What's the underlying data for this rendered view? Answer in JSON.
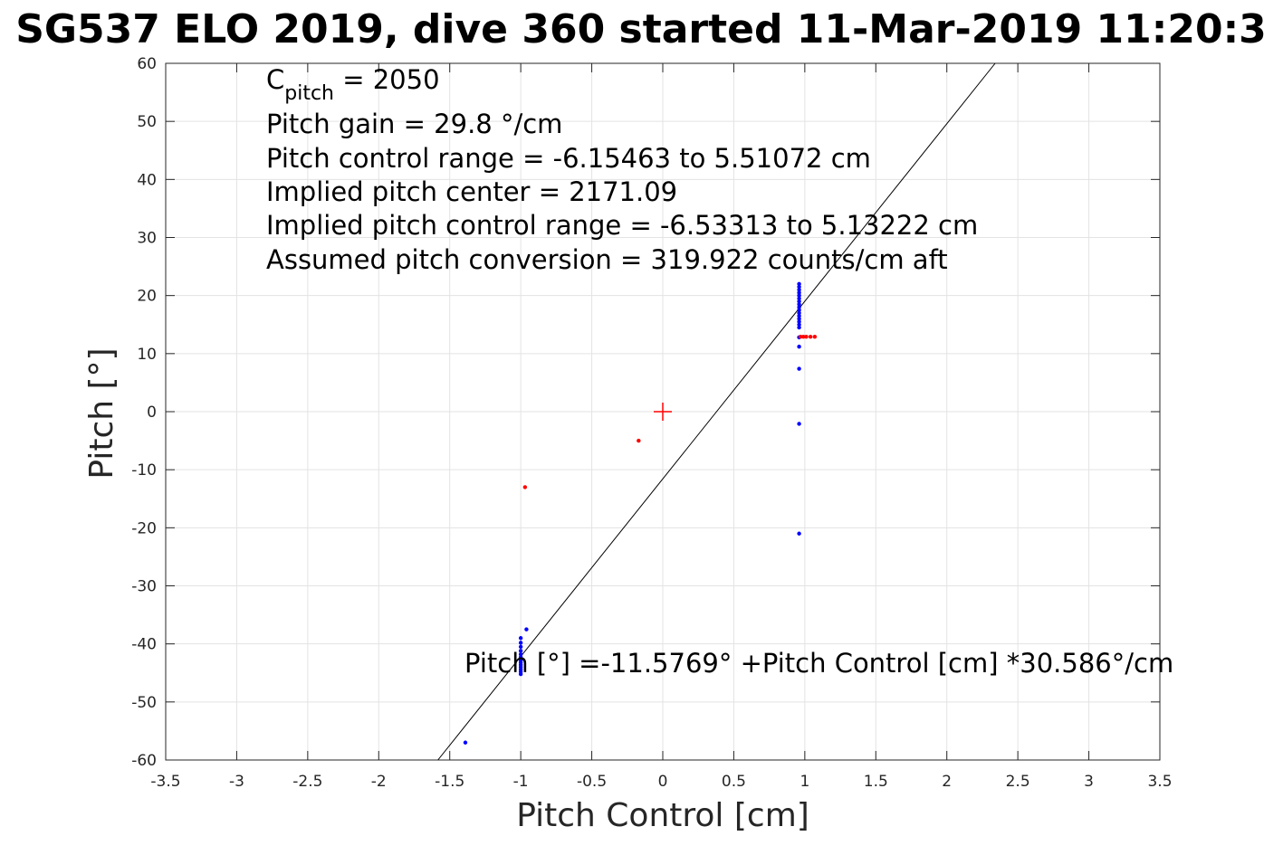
{
  "chart_data": {
    "type": "scatter",
    "title": "SG537 ELO 2019, dive 360 started 11-Mar-2019 11:20:3",
    "xlabel": "Pitch Control [cm]",
    "ylabel": "Pitch [°]",
    "xlim": [
      -3.5,
      3.5
    ],
    "ylim": [
      -60,
      60
    ],
    "grid": true,
    "xticks": [
      -3.5,
      -3,
      -2.5,
      -2,
      -1.5,
      -1,
      -0.5,
      0,
      0.5,
      1,
      1.5,
      2,
      2.5,
      3,
      3.5
    ],
    "xtick_labels": [
      "-3.5",
      "-3",
      "-2.5",
      "-2",
      "-1.5",
      "-1",
      "-0.5",
      "0",
      "0.5",
      "1",
      "1.5",
      "2",
      "2.5",
      "3",
      "3.5"
    ],
    "yticks": [
      60,
      50,
      40,
      30,
      20,
      10,
      0,
      -10,
      -20,
      -30,
      -40,
      -50,
      -60
    ],
    "ytick_labels": [
      "60",
      "50",
      "40",
      "30",
      "20",
      "10",
      "0",
      "-10",
      "-20",
      "-30",
      "-40",
      "-50",
      "-60"
    ],
    "annotations": {
      "c_pitch_main": "C",
      "c_pitch_sub": "pitch",
      "c_pitch_value": " = 2050",
      "pitch_gain": "Pitch gain = 29.8 °/cm",
      "control_range": "Pitch control range = -6.15463 to 5.51072 cm",
      "implied_center": "Implied pitch center = 2171.09",
      "implied_range": "Implied pitch control range = -6.53313 to 5.13222 cm",
      "conversion": "Assumed pitch conversion = 319.922 counts/cm aft",
      "fit_equation": "Pitch [°] =-11.5769° +Pitch Control [cm] *30.586°/cm"
    },
    "fit_line": {
      "intercept": -11.5769,
      "slope": 30.586,
      "color": "#000000"
    },
    "center_marker": {
      "x": 0,
      "y": 0,
      "color": "#ff0000"
    },
    "series": [
      {
        "color": "#0000ff",
        "points": [
          [
            -1.39,
            -57
          ],
          [
            -0.96,
            -37.5
          ],
          [
            -1.0,
            -39
          ],
          [
            -1.0,
            -39.8
          ],
          [
            -1.0,
            -40.5
          ],
          [
            -1.0,
            -41.2
          ],
          [
            -1.0,
            -41.8
          ],
          [
            -1.0,
            -42.3
          ],
          [
            -1.0,
            -42.8
          ],
          [
            -1.0,
            -43.2
          ],
          [
            -1.0,
            -43.6
          ],
          [
            -1.0,
            -44.0
          ],
          [
            -1.0,
            -44.4
          ],
          [
            -1.0,
            -44.8
          ],
          [
            -1.0,
            -45.2
          ],
          [
            0.96,
            22
          ],
          [
            0.96,
            21.5
          ],
          [
            0.96,
            21
          ],
          [
            0.96,
            20.5
          ],
          [
            0.96,
            20
          ],
          [
            0.96,
            19.5
          ],
          [
            0.96,
            19
          ],
          [
            0.96,
            18.5
          ],
          [
            0.96,
            18
          ],
          [
            0.96,
            17.5
          ],
          [
            0.96,
            17
          ],
          [
            0.96,
            16.5
          ],
          [
            0.96,
            16
          ],
          [
            0.96,
            15.5
          ],
          [
            0.96,
            15
          ],
          [
            0.96,
            14.5
          ],
          [
            0.96,
            12.8
          ],
          [
            0.96,
            11.2
          ],
          [
            0.96,
            7.4
          ],
          [
            0.96,
            -2.1
          ],
          [
            0.96,
            -21
          ]
        ]
      },
      {
        "color": "#ff0000",
        "points": [
          [
            -0.97,
            -13
          ],
          [
            -0.17,
            -5
          ],
          [
            0.97,
            12.9
          ],
          [
            0.99,
            12.9
          ],
          [
            1.01,
            12.9
          ],
          [
            1.04,
            12.9
          ],
          [
            1.07,
            12.9
          ]
        ]
      }
    ]
  }
}
